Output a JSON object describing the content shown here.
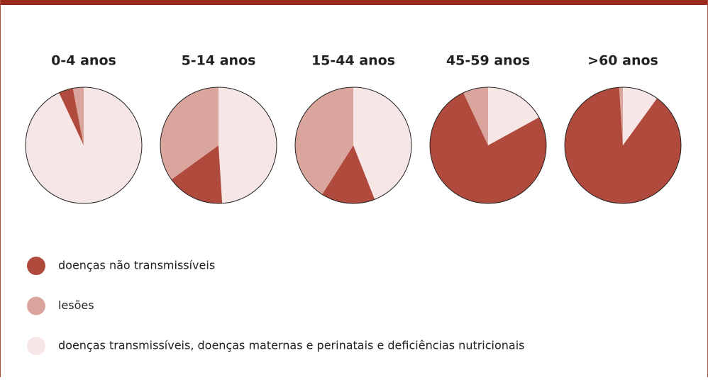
{
  "chart_data": [
    {
      "type": "pie",
      "title": "0-4 anos",
      "categories": [
        "doenças transmissíveis, doenças maternas e perinatais e deficiências nutricionais",
        "doenças não transmissíveis",
        "lesões"
      ],
      "values": [
        93,
        4,
        3
      ],
      "colors": [
        "#f6e7e6",
        "#b04a3c",
        "#d9a59d"
      ]
    },
    {
      "type": "pie",
      "title": "5-14 anos",
      "categories": [
        "doenças transmissíveis, doenças maternas e perinatais e deficiências nutricionais",
        "doenças não transmissíveis",
        "lesões"
      ],
      "values": [
        49,
        16,
        35
      ],
      "colors": [
        "#f6e7e6",
        "#b04a3c",
        "#d9a59d"
      ]
    },
    {
      "type": "pie",
      "title": "15-44 anos",
      "categories": [
        "doenças transmissíveis, doenças maternas e perinatais e deficiências nutricionais",
        "doenças não transmissíveis",
        "lesões"
      ],
      "values": [
        44,
        15,
        41
      ],
      "colors": [
        "#f6e7e6",
        "#b04a3c",
        "#d9a59d"
      ]
    },
    {
      "type": "pie",
      "title": "45-59 anos",
      "categories": [
        "doenças transmissíveis, doenças maternas e perinatais e deficiências nutricionais",
        "doenças não transmissíveis",
        "lesões"
      ],
      "values": [
        17,
        76,
        7
      ],
      "colors": [
        "#f6e7e6",
        "#b04a3c",
        "#d9a59d"
      ]
    },
    {
      "type": "pie",
      "title": ">60 anos",
      "categories": [
        "doenças transmissíveis, doenças maternas e perinatais e deficiências nutricionais",
        "doenças não transmissíveis",
        "lesões"
      ],
      "values": [
        10,
        89,
        1
      ],
      "colors": [
        "#f6e7e6",
        "#b04a3c",
        "#d9a59d"
      ]
    }
  ]
}
